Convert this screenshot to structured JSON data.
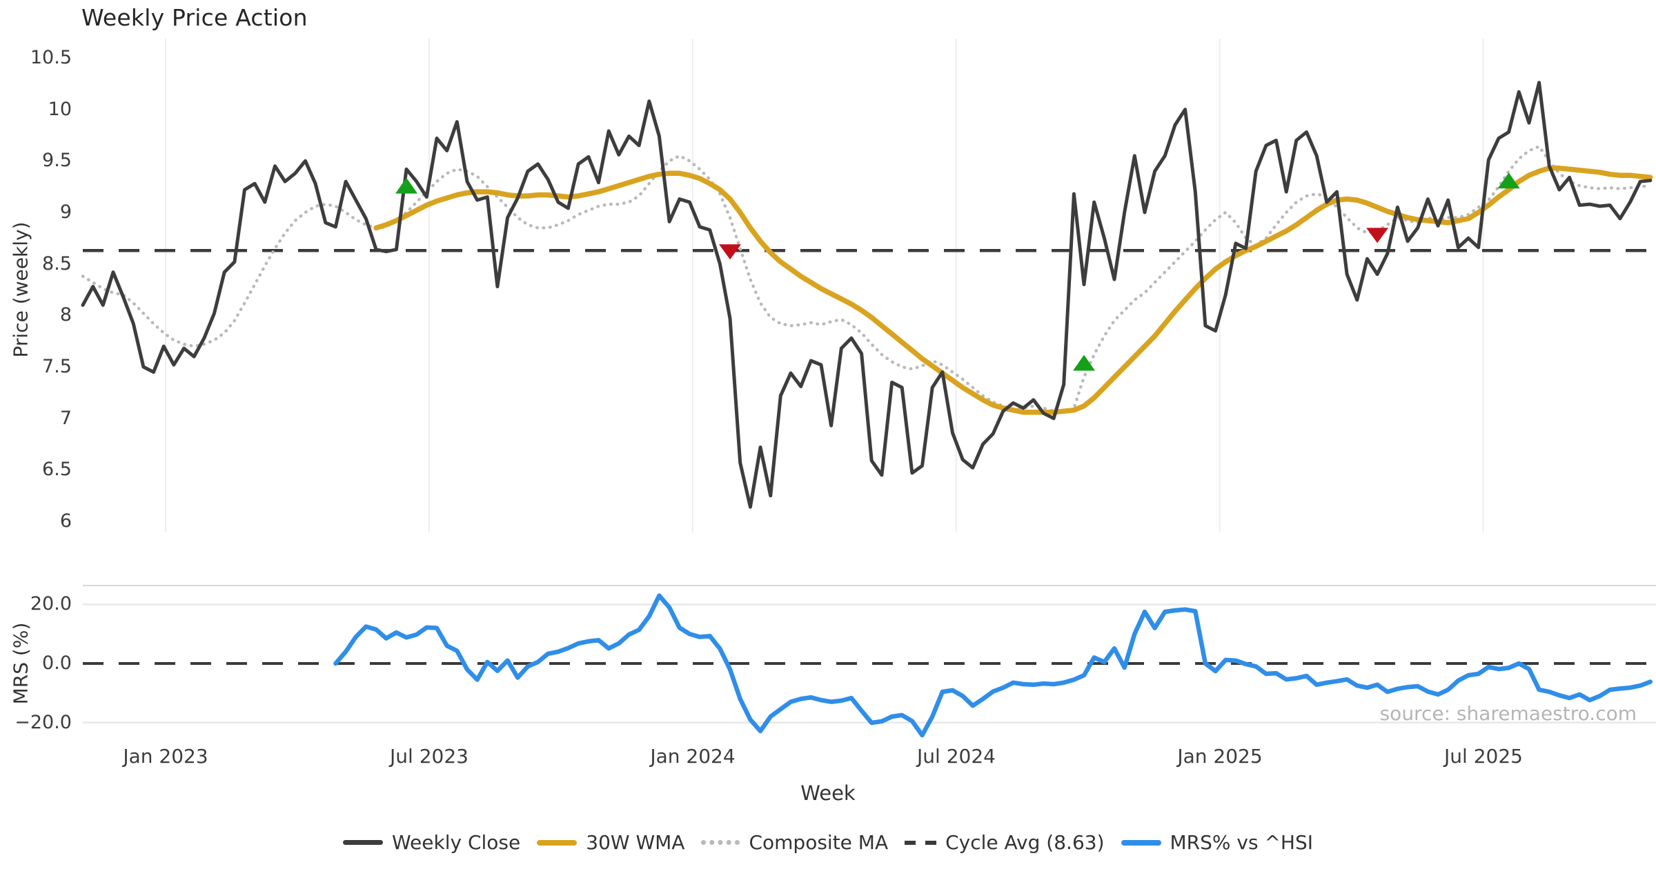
{
  "title": "Weekly Price Action",
  "watermark": "source: sharemaestro.com",
  "axes": {
    "price_label": "Price (weekly)",
    "mrs_label": "MRS (%)",
    "x_label": "Week",
    "price_ticks": [
      {
        "v": 10.5,
        "label": "10.5"
      },
      {
        "v": 10,
        "label": "10"
      },
      {
        "v": 9.5,
        "label": "9.5"
      },
      {
        "v": 9,
        "label": "9"
      },
      {
        "v": 8.5,
        "label": "8.5"
      },
      {
        "v": 8,
        "label": "8"
      },
      {
        "v": 7.5,
        "label": "7.5"
      },
      {
        "v": 7,
        "label": "7"
      },
      {
        "v": 6.5,
        "label": "6.5"
      },
      {
        "v": 6,
        "label": "6"
      }
    ],
    "mrs_ticks": [
      {
        "v": 20,
        "label": "20.0"
      },
      {
        "v": 0,
        "label": "0.0"
      },
      {
        "v": -20,
        "label": "−20.0"
      }
    ],
    "x_ticks": [
      {
        "label": "Jan 2023",
        "week": 8.19
      },
      {
        "label": "Jul 2023",
        "week": 34.24
      },
      {
        "label": "Jan 2024",
        "week": 60.3
      },
      {
        "label": "Jul 2024",
        "week": 86.36
      },
      {
        "label": "Jan 2025",
        "week": 112.42
      },
      {
        "label": "Jul 2025",
        "week": 138.47
      }
    ]
  },
  "legend": [
    {
      "label": "Weekly Close",
      "swatch": "solid-dark"
    },
    {
      "label": "30W WMA",
      "swatch": "solid-gold"
    },
    {
      "label": "Composite MA",
      "swatch": "dotted-gray"
    },
    {
      "label": "Cycle Avg (8.63)",
      "swatch": "dashed-dark"
    },
    {
      "label": "MRS% vs ^HSI",
      "swatch": "solid-blue"
    }
  ],
  "colors": {
    "weekly_close": "#3d3d3d",
    "wma30": "#d9a31f",
    "composite_ma": "#b9b9b9",
    "cycle_avg": "#3a3a3a",
    "mrs": "#2f8ee9",
    "buy_marker": "#15a01a",
    "sell_marker": "#c40f1a",
    "grid_vertical": "#eceef1",
    "mrs_grid": "#e7e7e7",
    "mrs_border": "#d6d6d6",
    "text": "#333333",
    "watermark": "#b5b5b5"
  },
  "chart_data": [
    {
      "type": "line",
      "panel": "price",
      "title": "Weekly Price Action",
      "ylabel": "Price (weekly)",
      "xlabel": "Week",
      "ylim": [
        5.9,
        10.6
      ],
      "yticks": [
        10.5,
        10,
        9.5,
        9,
        8.5,
        8,
        7.5,
        7,
        6.5,
        6
      ],
      "x_is_weekly_index": true,
      "total_weeks": 156,
      "cycle_avg": 8.63,
      "series": [
        {
          "name": "Weekly Close",
          "style": "solid",
          "start_week": 0,
          "values": [
            8.1,
            8.28,
            8.1,
            8.42,
            8.18,
            7.92,
            7.5,
            7.45,
            7.7,
            7.52,
            7.68,
            7.6,
            7.78,
            8.02,
            8.42,
            8.52,
            9.22,
            9.28,
            9.1,
            9.45,
            9.3,
            9.38,
            9.5,
            9.28,
            8.9,
            8.86,
            9.3,
            9.12,
            8.94,
            8.64,
            8.62,
            8.64,
            9.42,
            9.3,
            9.15,
            9.72,
            9.6,
            9.88,
            9.3,
            9.12,
            9.15,
            8.28,
            8.95,
            9.14,
            9.4,
            9.47,
            9.32,
            9.1,
            9.04,
            9.47,
            9.54,
            9.29,
            9.79,
            9.56,
            9.74,
            9.65,
            10.08,
            9.74,
            8.91,
            9.13,
            9.1,
            8.86,
            8.83,
            8.5,
            7.97,
            6.57,
            6.14,
            6.72,
            6.25,
            7.22,
            7.44,
            7.31,
            7.56,
            7.52,
            6.93,
            7.68,
            7.78,
            7.63,
            6.59,
            6.45,
            7.35,
            7.3,
            6.47,
            6.54,
            7.3,
            7.45,
            6.86,
            6.6,
            6.52,
            6.75,
            6.85,
            7.07,
            7.15,
            7.1,
            7.18,
            7.05,
            7.0,
            7.33,
            9.18,
            8.3,
            9.1,
            8.75,
            8.35,
            9.0,
            9.55,
            9.0,
            9.4,
            9.55,
            9.85,
            10.0,
            9.2,
            7.9,
            7.85,
            8.2,
            8.7,
            8.65,
            9.4,
            9.65,
            9.7,
            9.2,
            9.7,
            9.78,
            9.55,
            9.1,
            9.2,
            8.4,
            8.15,
            8.55,
            8.4,
            8.6,
            9.05,
            8.72,
            8.85,
            9.13,
            8.87,
            9.12,
            8.66,
            8.75,
            8.66,
            9.51,
            9.72,
            9.78,
            10.17,
            9.87,
            10.26,
            9.45,
            9.22,
            9.34,
            9.07,
            9.08,
            9.06,
            9.07,
            8.94,
            9.1,
            9.3,
            9.31
          ]
        },
        {
          "name": "30W WMA",
          "style": "solid",
          "start_week": 29,
          "values": [
            8.85,
            8.88,
            8.92,
            8.97,
            9.02,
            9.07,
            9.11,
            9.14,
            9.17,
            9.19,
            9.2,
            9.2,
            9.19,
            9.17,
            9.16,
            9.16,
            9.17,
            9.17,
            9.16,
            9.15,
            9.16,
            9.18,
            9.2,
            9.23,
            9.26,
            9.29,
            9.32,
            9.35,
            9.37,
            9.38,
            9.38,
            9.36,
            9.33,
            9.28,
            9.22,
            9.13,
            9.0,
            8.85,
            8.72,
            8.61,
            8.52,
            8.45,
            8.38,
            8.32,
            8.26,
            8.21,
            8.16,
            8.11,
            8.05,
            7.98,
            7.9,
            7.82,
            7.74,
            7.66,
            7.58,
            7.51,
            7.44,
            7.37,
            7.3,
            7.24,
            7.18,
            7.13,
            7.1,
            7.08,
            7.06,
            7.06,
            7.06,
            7.06,
            7.07,
            7.08,
            7.12,
            7.2,
            7.3,
            7.4,
            7.5,
            7.6,
            7.7,
            7.8,
            7.92,
            8.04,
            8.15,
            8.26,
            8.36,
            8.45,
            8.52,
            8.58,
            8.63,
            8.67,
            8.72,
            8.77,
            8.82,
            8.88,
            8.95,
            9.02,
            9.08,
            9.12,
            9.13,
            9.12,
            9.09,
            9.05,
            9.01,
            8.98,
            8.95,
            8.93,
            8.92,
            8.91,
            8.9,
            8.92,
            8.94,
            9.0,
            9.07,
            9.15,
            9.22,
            9.3,
            9.36,
            9.4,
            9.43,
            9.43,
            9.42,
            9.41,
            9.4,
            9.39,
            9.37,
            9.36,
            9.36,
            9.35,
            9.34
          ]
        },
        {
          "name": "Composite MA",
          "style": "dotted",
          "start_week": 0,
          "values": [
            8.38,
            8.32,
            8.26,
            8.22,
            8.2,
            8.12,
            8.02,
            7.92,
            7.83,
            7.76,
            7.72,
            7.7,
            7.72,
            7.76,
            7.83,
            7.95,
            8.12,
            8.3,
            8.48,
            8.65,
            8.8,
            8.92,
            9.0,
            9.06,
            9.08,
            9.06,
            9.0,
            8.93,
            8.88,
            8.85,
            8.86,
            8.92,
            9.0,
            9.1,
            9.2,
            9.3,
            9.38,
            9.42,
            9.4,
            9.35,
            9.25,
            9.15,
            9.05,
            8.95,
            8.88,
            8.85,
            8.85,
            8.88,
            8.92,
            8.98,
            9.02,
            9.06,
            9.08,
            9.08,
            9.1,
            9.16,
            9.28,
            9.4,
            9.5,
            9.55,
            9.5,
            9.42,
            9.32,
            9.18,
            8.95,
            8.65,
            8.35,
            8.12,
            7.98,
            7.92,
            7.9,
            7.91,
            7.93,
            7.91,
            7.94,
            7.96,
            7.91,
            7.83,
            7.72,
            7.62,
            7.55,
            7.5,
            7.48,
            7.51,
            7.56,
            7.52,
            7.45,
            7.38,
            7.3,
            7.22,
            7.16,
            7.12,
            7.09,
            7.1,
            7.12,
            7.1,
            7.07,
            7.06,
            7.1,
            7.4,
            7.62,
            7.8,
            7.95,
            8.05,
            8.15,
            8.22,
            8.32,
            8.42,
            8.52,
            8.62,
            8.72,
            8.83,
            8.93,
            9.0,
            8.9,
            8.75,
            8.68,
            8.75,
            8.88,
            9.0,
            9.1,
            9.16,
            9.18,
            9.15,
            9.05,
            8.95,
            8.85,
            8.8,
            8.82,
            8.88,
            8.95,
            8.92,
            8.9,
            8.95,
            8.92,
            8.95,
            8.95,
            8.98,
            9.05,
            9.12,
            9.25,
            9.4,
            9.52,
            9.6,
            9.64,
            9.5,
            9.38,
            9.3,
            9.26,
            9.24,
            9.23,
            9.24,
            9.23,
            9.24,
            9.25,
            9.26
          ]
        },
        {
          "name": "Cycle Avg (8.63)",
          "style": "dashed-horizontal",
          "value": 8.63
        }
      ],
      "markers": {
        "buy": [
          {
            "week": 32,
            "price": 9.25
          },
          {
            "week": 99,
            "price": 7.53
          },
          {
            "week": 141,
            "price": 9.3
          }
        ],
        "sell": [
          {
            "week": 64,
            "price": 8.63
          },
          {
            "week": 128,
            "price": 8.79
          }
        ]
      }
    },
    {
      "type": "line",
      "panel": "mrs",
      "ylabel": "MRS (%)",
      "ylim": [
        -26.5,
        26.5
      ],
      "yticks": [
        20,
        0,
        -20
      ],
      "zero_line": "dashed",
      "series": [
        {
          "name": "MRS% vs ^HSI",
          "style": "solid",
          "start_week": 25,
          "values": [
            0.0,
            4.0,
            9.0,
            12.5,
            11.5,
            8.5,
            10.5,
            8.8,
            9.8,
            12.2,
            12.0,
            6.0,
            4.3,
            -2.0,
            -5.5,
            0.5,
            -2.5,
            1.0,
            -4.8,
            -1.0,
            0.5,
            3.3,
            4.0,
            5.2,
            6.8,
            7.5,
            7.9,
            5.1,
            6.8,
            9.8,
            11.4,
            16.0,
            23.0,
            19.0,
            12.1,
            10.0,
            9.0,
            9.3,
            5.0,
            -2.0,
            -12.0,
            -19.0,
            -22.9,
            -18.0,
            -15.5,
            -13.0,
            -12.0,
            -11.5,
            -12.4,
            -13.0,
            -12.6,
            -11.7,
            -16.0,
            -20.1,
            -19.6,
            -18.0,
            -17.5,
            -19.5,
            -24.3,
            -18.0,
            -9.6,
            -9.1,
            -11.0,
            -14.3,
            -12.0,
            -9.5,
            -8.2,
            -6.5,
            -7.0,
            -7.2,
            -6.8,
            -7.0,
            -6.5,
            -5.5,
            -4.0,
            2.0,
            0.5,
            5.1,
            -1.4,
            10.0,
            17.5,
            12.0,
            17.5,
            18.0,
            18.3,
            17.7,
            0.0,
            -2.6,
            1.2,
            1.0,
            -0.2,
            -1.0,
            -3.5,
            -3.3,
            -5.4,
            -5.0,
            -4.2,
            -7.2,
            -6.5,
            -6.0,
            -5.4,
            -7.5,
            -8.2,
            -7.2,
            -9.6,
            -8.6,
            -8.0,
            -7.7,
            -9.5,
            -10.5,
            -8.9,
            -5.8,
            -4.0,
            -3.5,
            -1.2,
            -1.9,
            -1.5,
            0.0,
            -1.9,
            -8.9,
            -9.6,
            -10.8,
            -11.7,
            -10.5,
            -12.4,
            -11.0,
            -8.9,
            -8.5,
            -8.2,
            -7.5,
            -6.2
          ]
        }
      ]
    }
  ]
}
